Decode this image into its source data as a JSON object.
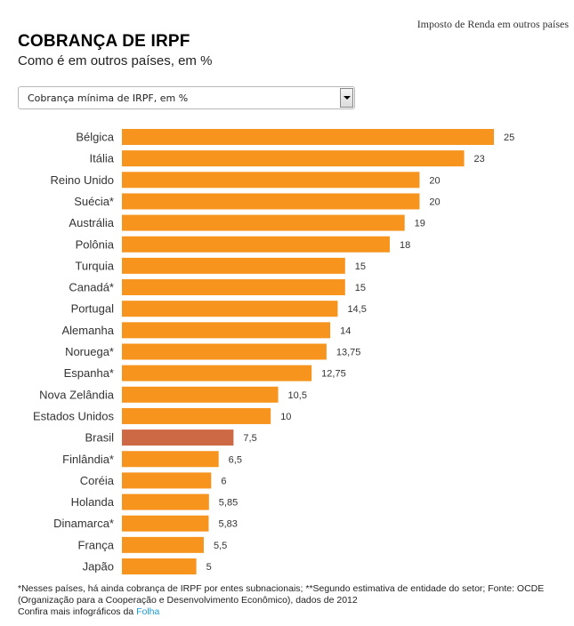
{
  "header": {
    "top_label": "Imposto de Renda em outros países",
    "title": "COBRANÇA DE IRPF",
    "subtitle": "Como é em outros países, em %"
  },
  "selector": {
    "selected": "Cobrança mínima de IRPF, em %",
    "icon": "chevron-down-icon"
  },
  "colors": {
    "bar": "#f7941d",
    "highlight": "#cd6a45"
  },
  "chart_data": {
    "type": "bar",
    "orientation": "horizontal",
    "title": "Cobrança mínima de IRPF, em %",
    "xlabel": "",
    "ylabel": "",
    "xlim": [
      0,
      25
    ],
    "grid": false,
    "highlight": "Brasil",
    "categories": [
      "Bélgica",
      "Itália",
      "Reino Unido",
      "Suécia*",
      "Austrália",
      "Polônia",
      "Turquia",
      "Canadá*",
      "Portugal",
      "Alemanha",
      "Noruega*",
      "Espanha*",
      "Nova Zelândia",
      "Estados Unidos",
      "Brasil",
      "Finlândia*",
      "Coréia",
      "Holanda",
      "Dinamarca*",
      "França",
      "Japão"
    ],
    "values": [
      25,
      23,
      20,
      20,
      19,
      18,
      15,
      15,
      14.5,
      14,
      13.75,
      12.75,
      10.5,
      10,
      7.5,
      6.5,
      6,
      5.85,
      5.83,
      5.5,
      5
    ],
    "value_labels": [
      "25",
      "23",
      "20",
      "20",
      "19",
      "18",
      "15",
      "15",
      "14,5",
      "14",
      "13,75",
      "12,75",
      "10,5",
      "10",
      "7,5",
      "6,5",
      "6",
      "5,85",
      "5,83",
      "5,5",
      "5"
    ]
  },
  "footer": {
    "note": "*Nesses países, há ainda cobrança de IRPF por entes subnacionais; **Segundo estimativa de entidade do setor; Fonte: OCDE (Organização para a Cooperação e Desenvolvimento Econômico), dados de 2012",
    "more_prefix": "Confira mais infográficos da ",
    "more_link": "Folha"
  }
}
